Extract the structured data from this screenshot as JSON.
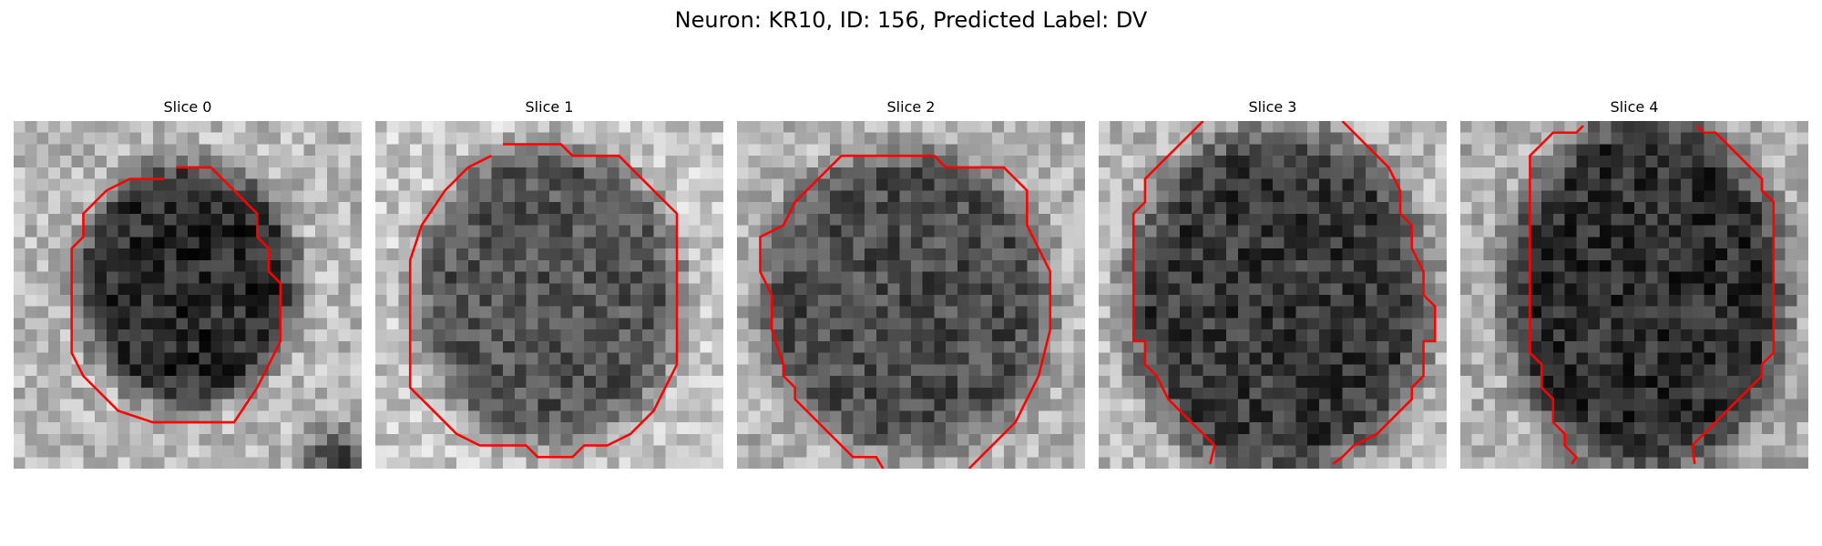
{
  "figure": {
    "title": "Neuron: KR10, ID: 156, Predicted Label: DV"
  },
  "colors": {
    "contour": "#ff0000",
    "colormap": "gray"
  },
  "panels": [
    {
      "title": "Slice 0"
    },
    {
      "title": "Slice 1"
    },
    {
      "title": "Slice 2"
    },
    {
      "title": "Slice 3"
    },
    {
      "title": "Slice 4"
    }
  ]
}
